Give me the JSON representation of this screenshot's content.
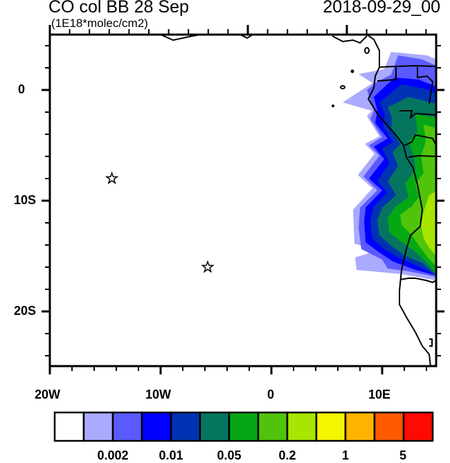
{
  "header": {
    "title_left": "CO col BB 28 Sep",
    "title_right": "2018-09-29_00",
    "units": "(1E18*molec/cm2)"
  },
  "map": {
    "lon_range": [
      -20,
      15
    ],
    "lat_range": [
      -25,
      5
    ],
    "x_tick_labels": [
      "20W",
      "10W",
      "0",
      "10E"
    ],
    "y_tick_labels": [
      "0",
      "10S",
      "20S"
    ],
    "markers": [
      {
        "symbol": "star",
        "lon": -14.4,
        "lat": -8.0
      },
      {
        "symbol": "star",
        "lon": -5.75,
        "lat": -16.0
      }
    ]
  },
  "colorbar": {
    "colors": [
      "#ffffff",
      "#aaaaff",
      "#5a5aff",
      "#0000ff",
      "#0033b3",
      "#057560",
      "#05a814",
      "#50c40a",
      "#a6e600",
      "#f5f500",
      "#ffb300",
      "#ff5a00",
      "#ff0a00"
    ],
    "labels": [
      "0.002",
      "0.01",
      "0.05",
      "0.2",
      "1",
      "5"
    ]
  }
}
